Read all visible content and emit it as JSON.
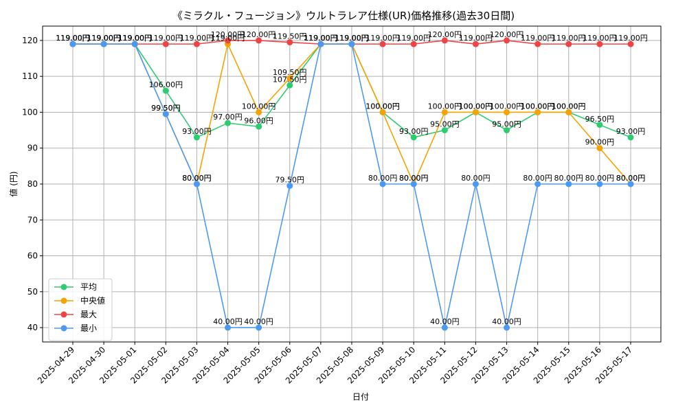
{
  "chart_data": {
    "type": "line",
    "title": "《ミラクル・フュージョン》ウルトラレア仕様(UR)価格推移(過去30日間)",
    "xlabel": "日付",
    "ylabel": "値 (円)",
    "ylim": [
      36,
      124
    ],
    "yticks": [
      40,
      50,
      60,
      70,
      80,
      90,
      100,
      110,
      120
    ],
    "grid": true,
    "legend_position": "lower-left",
    "categories": [
      "2025-04-29",
      "2025-04-30",
      "2025-05-01",
      "2025-05-02",
      "2025-05-03",
      "2025-05-04",
      "2025-05-05",
      "2025-05-06",
      "2025-05-07",
      "2025-05-08",
      "2025-05-09",
      "2025-05-10",
      "2025-05-11",
      "2025-05-12",
      "2025-05-13",
      "2025-05-14",
      "2025-05-15",
      "2025-05-16",
      "2025-05-17"
    ],
    "value_suffix": "円",
    "series": [
      {
        "name": "平均",
        "color": "#2ecc71",
        "values": [
          119,
          119,
          119,
          106,
          93,
          97,
          96,
          107.5,
          119,
          119,
          100,
          93,
          95,
          100,
          95,
          100,
          100,
          96.5,
          93
        ]
      },
      {
        "name": "中央値",
        "color": "#f5a300",
        "values": [
          119,
          119,
          119,
          99.5,
          80,
          119,
          100,
          109.5,
          119,
          119,
          100,
          80,
          100,
          100,
          100,
          100,
          100,
          90,
          80
        ]
      },
      {
        "name": "最大",
        "color": "#ef4444",
        "values": [
          119,
          119,
          119,
          119,
          119,
          120,
          120,
          119.5,
          119,
          119,
          119,
          119,
          120,
          119,
          120,
          119,
          119,
          119,
          119
        ]
      },
      {
        "name": "最小",
        "color": "#4a9af5",
        "values": [
          119,
          119,
          119,
          99.5,
          80,
          40,
          40,
          79.5,
          119,
          119,
          80,
          80,
          40,
          80,
          40,
          80,
          80,
          80,
          80
        ]
      }
    ]
  }
}
